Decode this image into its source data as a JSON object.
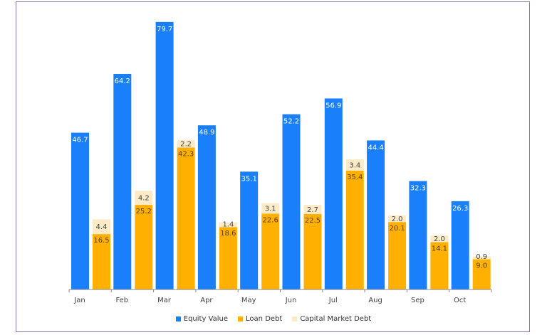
{
  "chart_data": {
    "type": "bar",
    "stacked_series": [
      "Loan Debt",
      "Capital Market Debt"
    ],
    "categories": [
      "Jan",
      "Feb",
      "Mar",
      "Apr",
      "May",
      "Jun",
      "Jul",
      "Aug",
      "Sep",
      "Oct"
    ],
    "series": [
      {
        "name": "Equity Value",
        "color": "#1a7ffa",
        "values": [
          46.7,
          64.2,
          79.7,
          48.9,
          35.1,
          52.2,
          56.9,
          44.4,
          32.3,
          26.3
        ]
      },
      {
        "name": "Loan Debt",
        "color": "#ffb000",
        "values": [
          16.5,
          25.2,
          42.3,
          18.6,
          22.6,
          22.5,
          35.4,
          20.1,
          14.1,
          9.0
        ]
      },
      {
        "name": "Capital Market Debt",
        "color": "#fcebc6",
        "values": [
          4.4,
          4.2,
          2.2,
          1.4,
          3.1,
          2.7,
          3.4,
          2.0,
          2.0,
          0.9
        ]
      }
    ],
    "title": "",
    "xlabel": "",
    "ylabel": "",
    "ylim": [
      0,
      80
    ],
    "grid": false,
    "legend": "bottom-center"
  }
}
